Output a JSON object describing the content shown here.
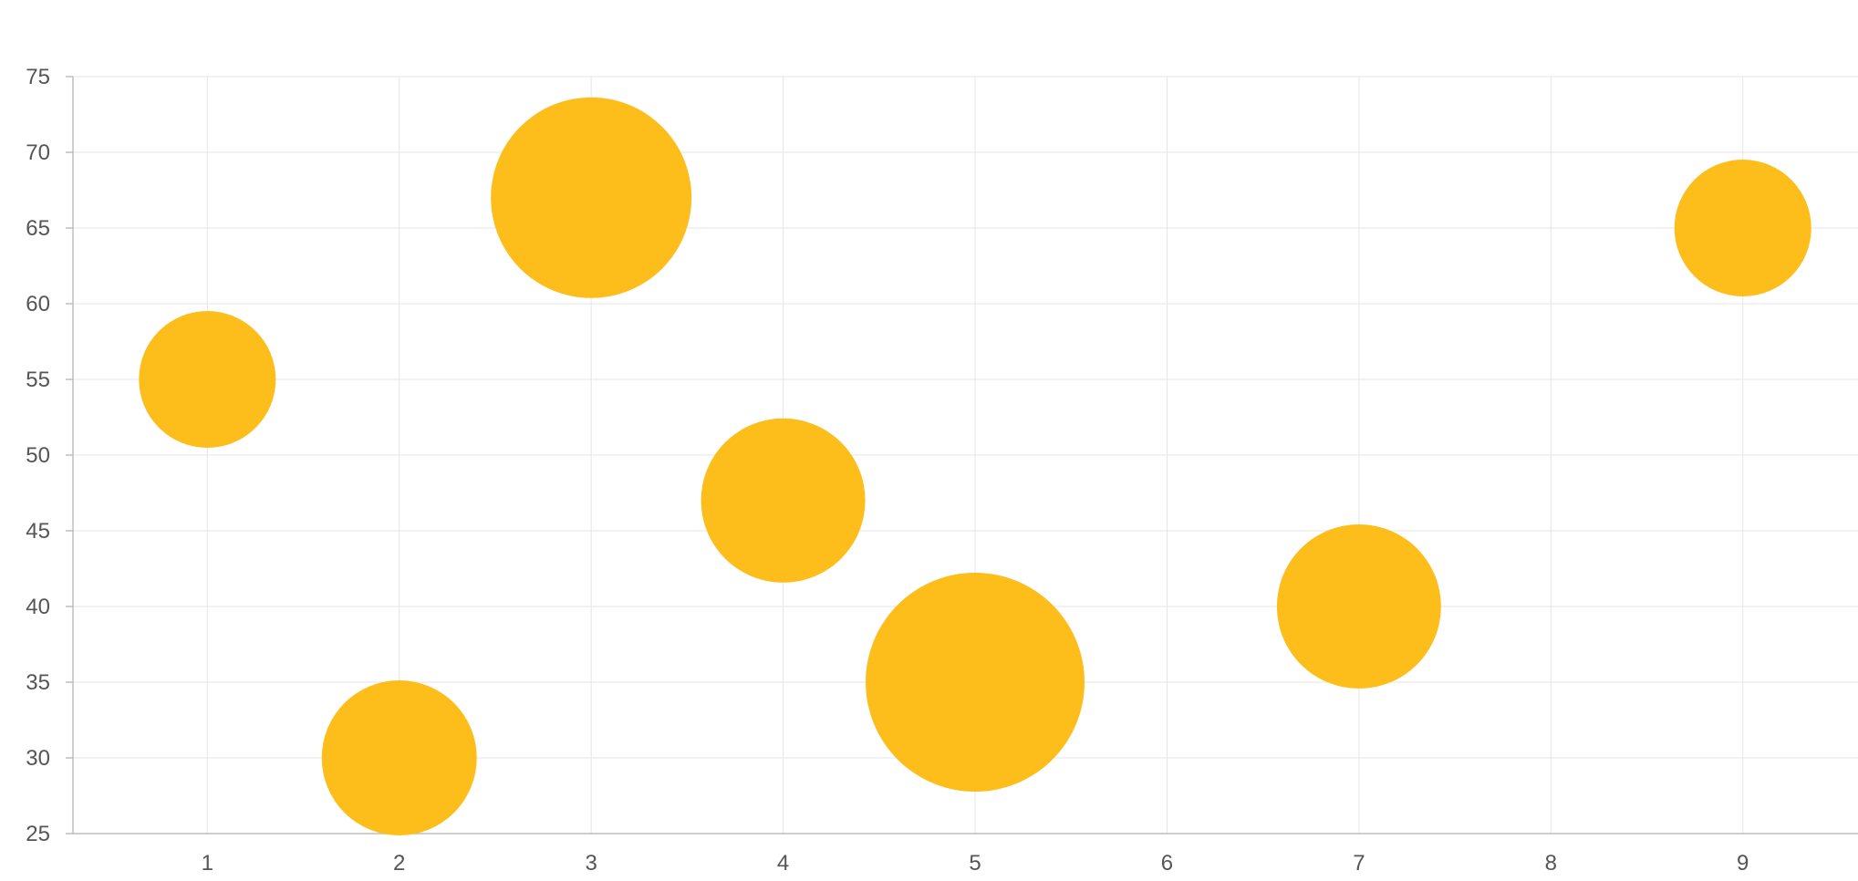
{
  "chart_data": {
    "type": "scatter",
    "variant": "bubble",
    "title": "",
    "xlabel": "",
    "ylabel": "",
    "xlim": [
      0.3,
      9.6
    ],
    "ylim": [
      25,
      75
    ],
    "x_ticks": [
      1,
      2,
      3,
      4,
      5,
      6,
      7,
      8,
      9
    ],
    "y_ticks": [
      25,
      30,
      35,
      40,
      45,
      50,
      55,
      60,
      65,
      70,
      75
    ],
    "grid": true,
    "legend": "none",
    "color": "#FDBD1B",
    "points": [
      {
        "x": 1,
        "y": 55,
        "size": 15
      },
      {
        "x": 2,
        "y": 30,
        "size": 17
      },
      {
        "x": 3,
        "y": 67,
        "size": 22
      },
      {
        "x": 4,
        "y": 47,
        "size": 18
      },
      {
        "x": 5,
        "y": 35,
        "size": 24
      },
      {
        "x": 7,
        "y": 40,
        "size": 18
      },
      {
        "x": 9,
        "y": 65,
        "size": 15
      }
    ]
  }
}
